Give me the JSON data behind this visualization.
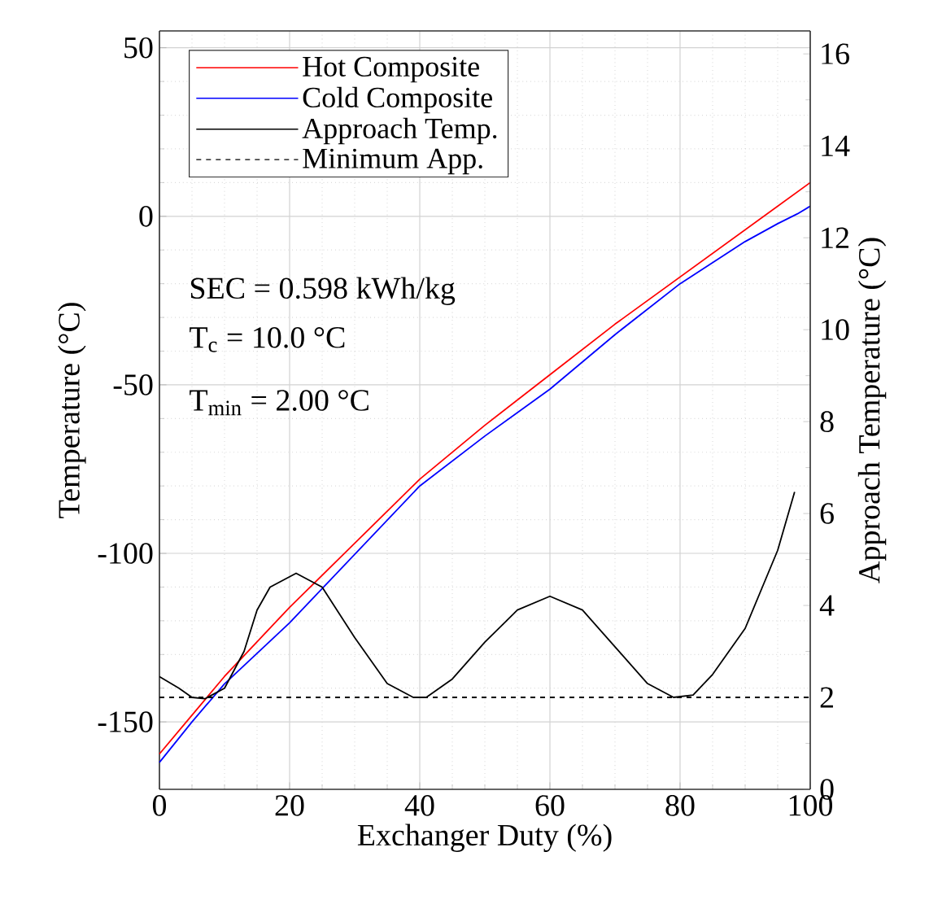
{
  "chart_data": {
    "type": "line",
    "xlabel": "Exchanger Duty (%)",
    "ylabel": "Temperature (°C)",
    "y2label": "Approach Temperature (°C)",
    "xlim": [
      0,
      100
    ],
    "xticks": [
      0,
      20,
      40,
      60,
      80,
      100
    ],
    "ylim": [
      -170,
      55
    ],
    "yticks": [
      -150,
      -100,
      -50,
      0,
      50
    ],
    "y2lim": [
      0,
      16.5
    ],
    "y2ticks": [
      0,
      2,
      4,
      6,
      8,
      10,
      12,
      14,
      16
    ],
    "grid": true,
    "legend": "top left",
    "marker": "none",
    "annotations": [
      "SEC = 0.598 kWh/kg",
      "T$_{c}$ =  10.0 °C",
      "T$_{min}$ =  2.00 °C"
    ],
    "series": [
      {
        "name": "Hot Composite",
        "color": "#ff0000",
        "line_style": "solid",
        "x": [
          0,
          5,
          10,
          20,
          30,
          40,
          50,
          60,
          70,
          80,
          90,
          100
        ],
        "values": [
          -159.5,
          -148,
          -136.5,
          -116,
          -97,
          -78,
          -62,
          -47,
          -32,
          -18,
          -4,
          10
        ]
      },
      {
        "name": "Cold Composite",
        "color": "#0000ff",
        "line_style": "solid",
        "x": [
          0,
          5,
          10,
          20,
          30,
          40,
          50,
          60,
          70,
          80,
          90,
          95,
          98,
          100
        ],
        "values": [
          -162,
          -150,
          -138.7,
          -120.6,
          -100.3,
          -80,
          -65.2,
          -51.3,
          -35.1,
          -20,
          -7.5,
          -2.2,
          0.7,
          3
        ]
      },
      {
        "name": "Approach Temp.",
        "color": "#000000",
        "line_style": "solid",
        "axis": "y2",
        "x": [
          0,
          3,
          5,
          7,
          10,
          13,
          15,
          17,
          21,
          25,
          30,
          35,
          39,
          41,
          45,
          50,
          55,
          60,
          65,
          70,
          75,
          79,
          82,
          85,
          90,
          95,
          97.6
        ],
        "values": [
          2.45,
          2.2,
          2.0,
          1.97,
          2.2,
          3.0,
          3.9,
          4.4,
          4.7,
          4.4,
          3.3,
          2.3,
          2.0,
          2.0,
          2.4,
          3.2,
          3.9,
          4.2,
          3.9,
          3.1,
          2.3,
          2.0,
          2.05,
          2.5,
          3.5,
          5.2,
          6.47
        ]
      },
      {
        "name": "Minimum App.",
        "color": "#000000",
        "line_style": "dashed",
        "axis": "y2",
        "x": [
          0,
          100
        ],
        "values": [
          2,
          2
        ]
      }
    ]
  }
}
